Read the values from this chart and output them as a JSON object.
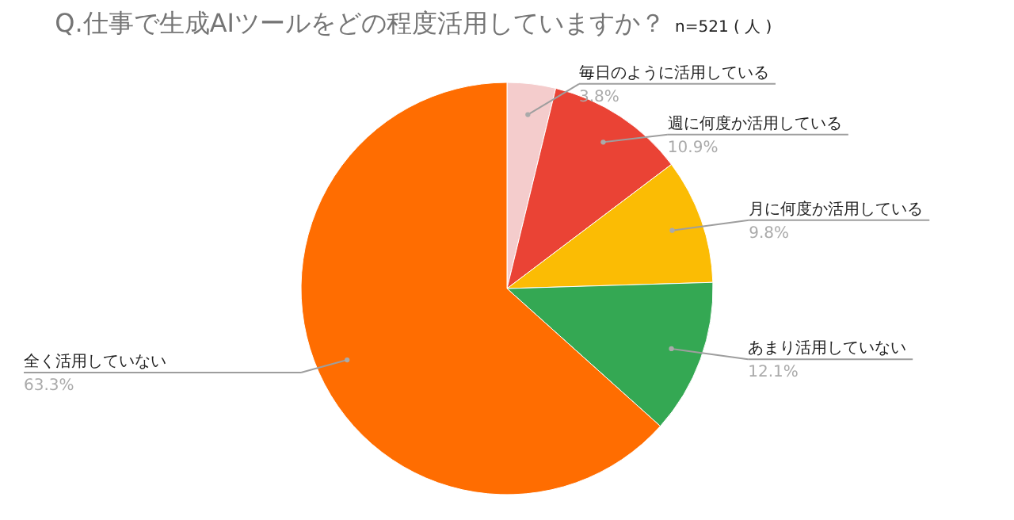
{
  "chart_data": {
    "type": "pie",
    "title": "Q.仕事で生成AIツールをどの程度活用していますか？",
    "subtitle": "n=521 ( 人 )",
    "categories": [
      "毎日のように活用している",
      "週に何度か活用している",
      "月に何度か活用している",
      "あまり活用していない",
      "全く活用していない"
    ],
    "values": [
      3.8,
      10.9,
      9.8,
      12.1,
      63.3
    ],
    "colors": [
      "#f4cccc",
      "#ea4335",
      "#fbbc04",
      "#34a853",
      "#ff6d01"
    ],
    "value_labels": [
      "3.8%",
      "10.9%",
      "9.8%",
      "12.1%",
      "63.3%"
    ]
  }
}
